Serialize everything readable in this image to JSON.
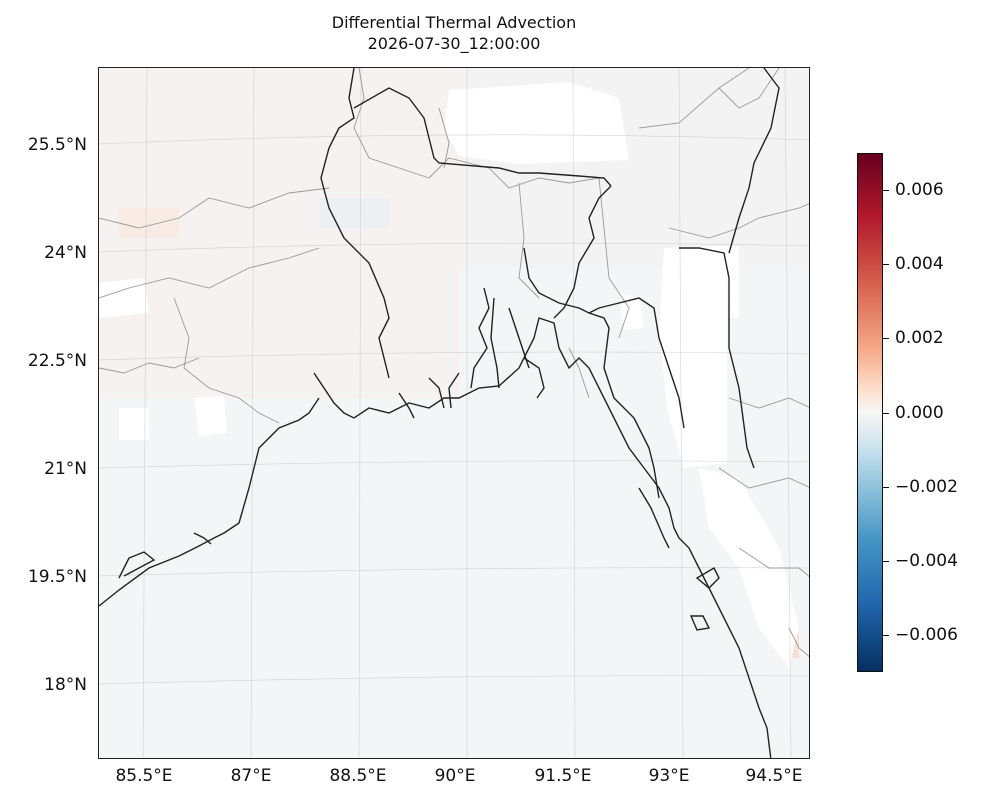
{
  "title": "Differential Thermal Advection",
  "subtitle": "2026-07-30_12:00:00",
  "map": {
    "lat_labels": [
      "25.5°N",
      "24°N",
      "22.5°N",
      "21°N",
      "19.5°N",
      "18°N"
    ],
    "lon_labels": [
      "85.5°E",
      "87°E",
      "88.5°E",
      "90°E",
      "91.5°E",
      "93°E",
      "94.5°E"
    ],
    "extent": {
      "lon_min": 84.85,
      "lon_max": 94.95,
      "lat_min": 17.0,
      "lat_max": 26.6
    },
    "field_description": "near-zero differential thermal advection over Bay of Bengal region with weak positive/negative streaks over land",
    "missing_color": "#ffffff",
    "coastline_color": "#222222",
    "border_color": "#999999"
  },
  "colorbar": {
    "colormap": "RdBu_r",
    "min": -0.007,
    "max": 0.007,
    "ticks": [
      0.006,
      0.004,
      0.002,
      0.0,
      -0.002,
      -0.004,
      -0.006
    ],
    "tick_labels": [
      "0.006",
      "0.004",
      "0.002",
      "0.000",
      "−0.002",
      "−0.004",
      "−0.006"
    ]
  }
}
